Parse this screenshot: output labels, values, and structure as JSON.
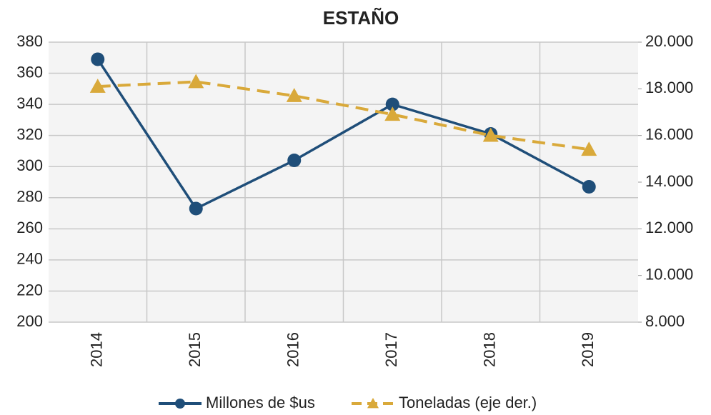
{
  "chart_data": {
    "type": "line",
    "title": "ESTAÑO",
    "categories": [
      "2014",
      "2015",
      "2016",
      "2017",
      "2018",
      "2019"
    ],
    "series": [
      {
        "name": "Millones de $us",
        "color": "#1f4e79",
        "values": [
          369,
          273,
          304,
          340,
          321,
          287
        ]
      },
      {
        "name": "Toneladas (eje der.)",
        "color": "#d9a93a",
        "axis": "y2",
        "dashed": true,
        "marker": "triangle",
        "values": [
          18100,
          18300,
          17700,
          16900,
          16000,
          15400
        ]
      }
    ],
    "ylim": [
      200,
      380
    ],
    "yticks": [
      200,
      220,
      240,
      260,
      280,
      300,
      320,
      340,
      360,
      380
    ],
    "y2lim": [
      8000,
      20000
    ],
    "y2ticks": [
      {
        "value": 8000,
        "label": "8.000"
      },
      {
        "value": 10000,
        "label": "10.000"
      },
      {
        "value": 12000,
        "label": "12.000"
      },
      {
        "value": 14000,
        "label": "14.000"
      },
      {
        "value": 16000,
        "label": "16.000"
      },
      {
        "value": 18000,
        "label": "18.000"
      },
      {
        "value": 20000,
        "label": "20.000"
      }
    ],
    "grid": true,
    "legend": "bottom"
  }
}
